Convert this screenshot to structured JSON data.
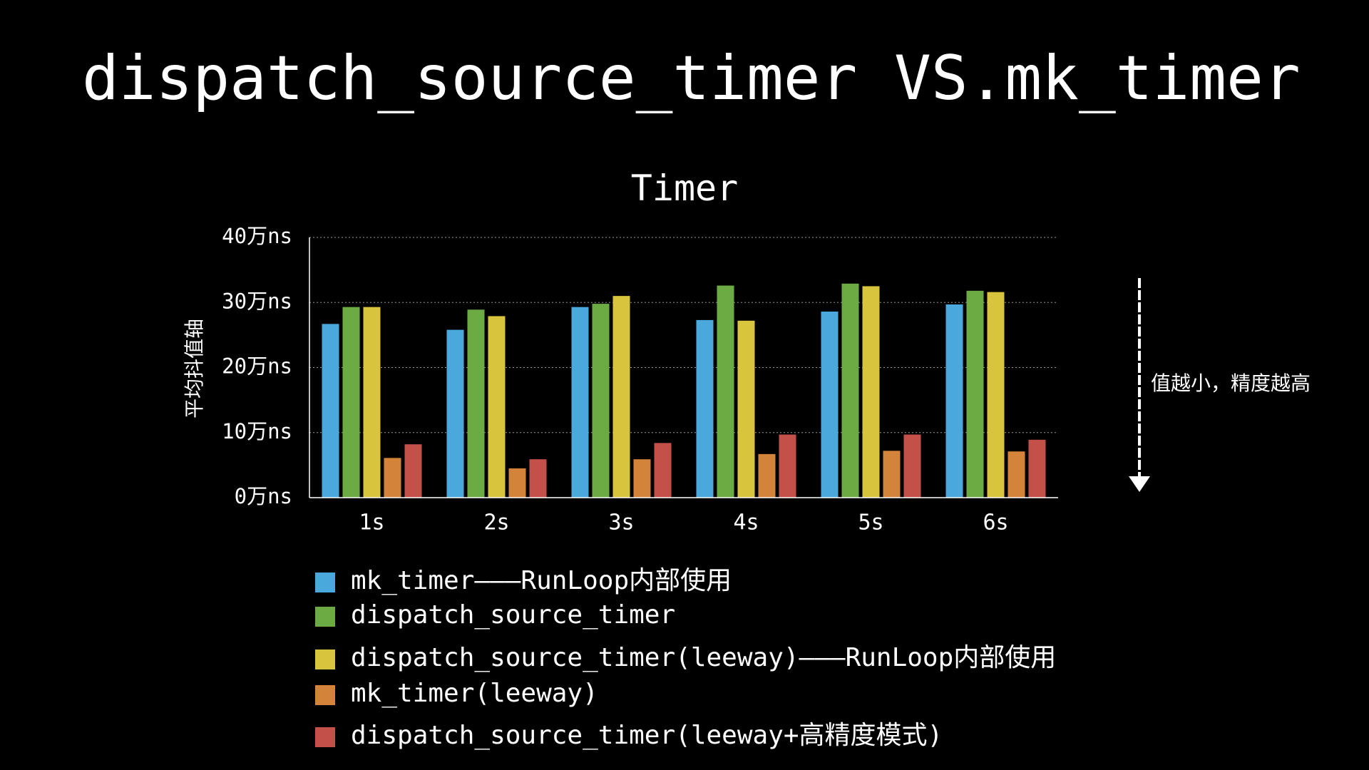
{
  "slide": {
    "title": "dispatch_source_timer VS.mk_timer"
  },
  "annotation": {
    "text": "值越小，精度越高",
    "arrow_icon": "down-arrow-icon"
  },
  "colors": {
    "background": "#000000",
    "text": "#ffffff",
    "series": [
      "#4aa8dc",
      "#6cab43",
      "#d8c43d",
      "#d4843a",
      "#c4504a"
    ]
  },
  "chart_data": {
    "type": "bar",
    "title": "Timer",
    "ylabel": "平均抖值轴",
    "xlabel": "",
    "categories": [
      "1s",
      "2s",
      "3s",
      "4s",
      "5s",
      "6s"
    ],
    "ylim": [
      0,
      40
    ],
    "yticks": [
      0,
      10,
      20,
      30,
      40
    ],
    "ytick_labels": [
      "0万ns",
      "10万ns",
      "20万ns",
      "30万ns",
      "40万ns"
    ],
    "grid": true,
    "legend_position": "bottom",
    "series": [
      {
        "name": "mk_timer———RunLoop内部使用",
        "values": [
          26.7,
          25.8,
          29.3,
          27.3,
          28.6,
          29.7
        ]
      },
      {
        "name": "dispatch_source_timer",
        "values": [
          29.3,
          28.9,
          29.8,
          32.6,
          32.9,
          31.8
        ]
      },
      {
        "name": "dispatch_source_timer(leeway)———RunLoop内部使用",
        "values": [
          29.3,
          27.9,
          31.0,
          27.2,
          32.5,
          31.6
        ]
      },
      {
        "name": "mk_timer(leeway)",
        "values": [
          6.1,
          4.5,
          5.9,
          6.7,
          7.2,
          7.1
        ]
      },
      {
        "name": "dispatch_source_timer(leeway+高精度模式)",
        "values": [
          8.2,
          5.9,
          8.4,
          9.7,
          9.7,
          8.9
        ]
      }
    ]
  }
}
